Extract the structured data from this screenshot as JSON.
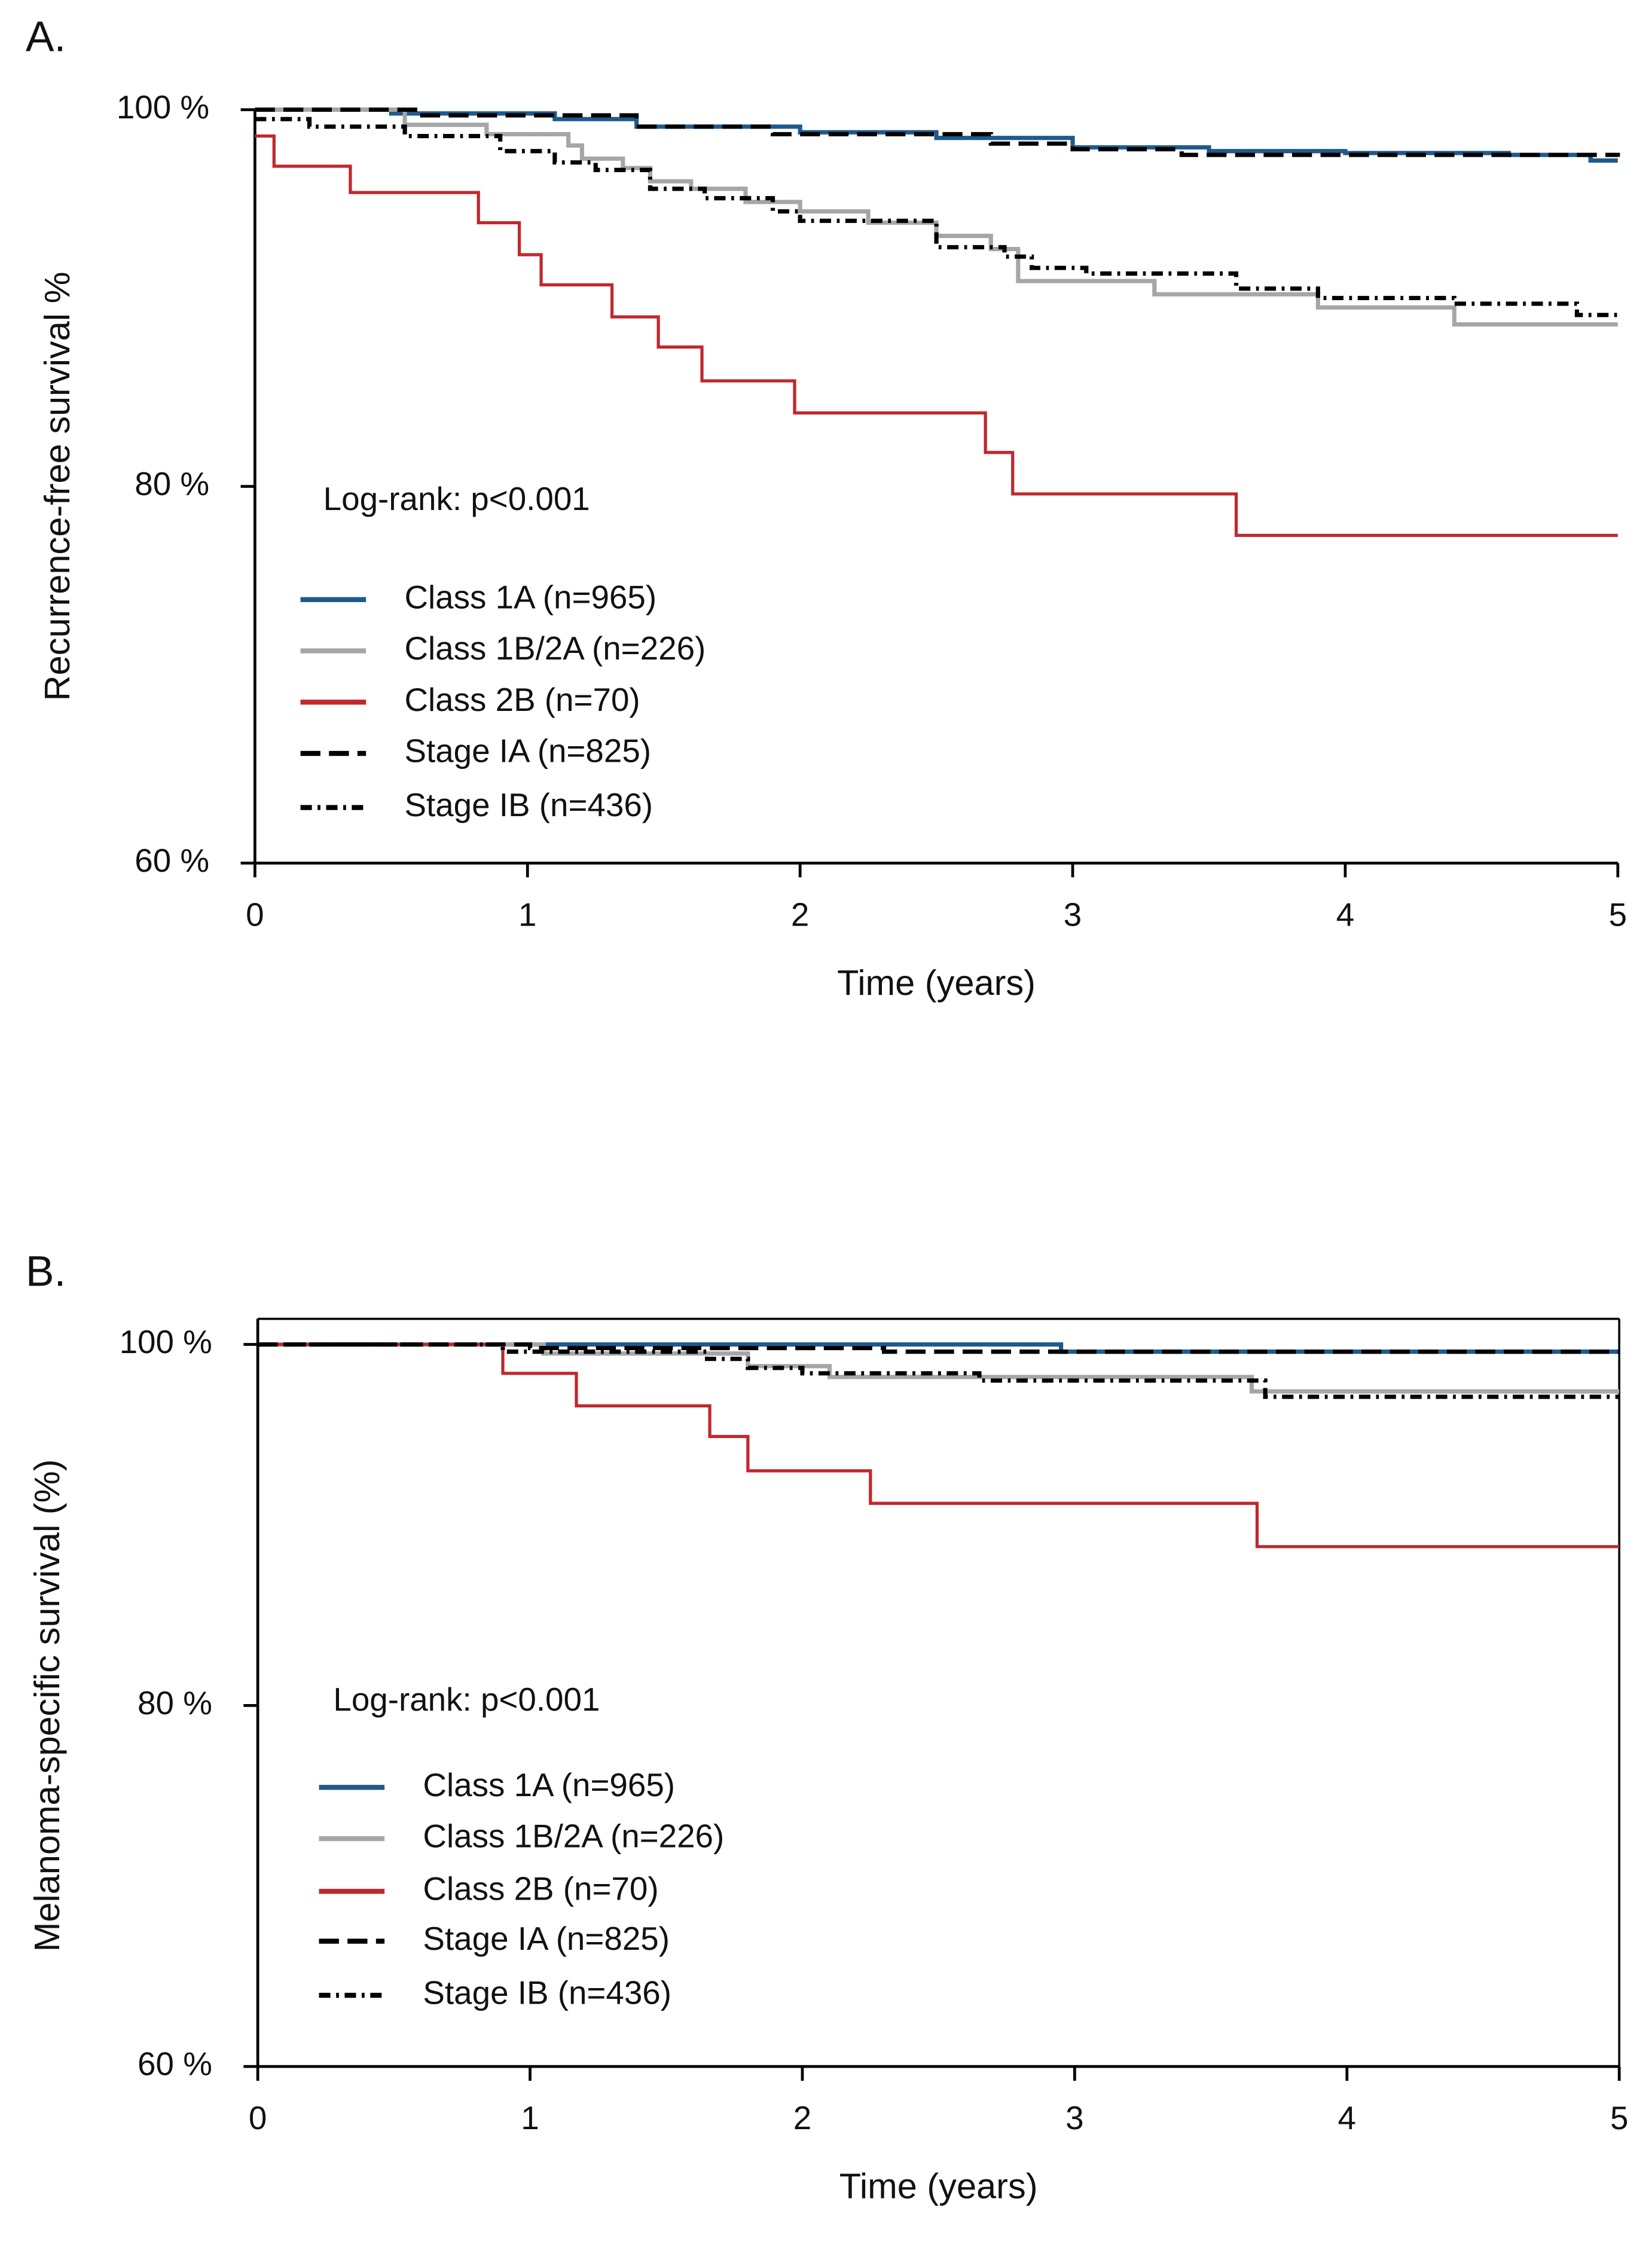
{
  "chart_data": [
    {
      "type": "line",
      "drawstyle": "steps-post",
      "panel_label": "A.",
      "xlabel": "Time (years)",
      "ylabel": "Recurrence-free survival %",
      "annotation": "Log-rank: p<0.001",
      "box": false,
      "xlim": [
        0,
        5
      ],
      "xticks": [
        0,
        1,
        2,
        3,
        4,
        5
      ],
      "ylim": [
        60,
        100
      ],
      "yticks": [
        {
          "value": 60,
          "label": "60 %"
        },
        {
          "value": 80,
          "label": "80 %"
        },
        {
          "value": 100,
          "label": "100 %"
        }
      ],
      "series": [
        {
          "name": "Class 1A (n=965)",
          "color": "#1f5a8c",
          "linestyle": "solid",
          "x": [
            0,
            0.5,
            1.1,
            1.4,
            2.0,
            2.5,
            3.0,
            3.5,
            4.0,
            4.6,
            4.9,
            5
          ],
          "values": [
            100,
            99.8,
            99.5,
            99.1,
            98.8,
            98.5,
            98.0,
            97.8,
            97.7,
            97.6,
            97.3,
            97.3
          ]
        },
        {
          "name": "Class 1B/2A (n=226)",
          "color": "#a6a6a6",
          "linestyle": "solid",
          "x": [
            0,
            0.55,
            0.85,
            1.15,
            1.2,
            1.35,
            1.45,
            1.6,
            1.8,
            2.0,
            2.25,
            2.5,
            2.7,
            2.8,
            3.3,
            3.9,
            4.4,
            5
          ],
          "values": [
            100,
            99.2,
            98.7,
            98.1,
            97.4,
            96.9,
            96.2,
            95.8,
            95.1,
            94.6,
            94.0,
            93.3,
            92.6,
            90.9,
            90.2,
            89.5,
            88.6,
            88.6
          ]
        },
        {
          "name": "Class 2B (n=70)",
          "color": "#c0282d",
          "linestyle": "solid",
          "x": [
            0,
            0.07,
            0.35,
            0.82,
            0.97,
            1.05,
            1.31,
            1.48,
            1.64,
            1.98,
            2.68,
            2.78,
            3.6,
            5
          ],
          "values": [
            98.6,
            97.0,
            95.6,
            94.0,
            92.3,
            90.7,
            89.0,
            87.4,
            85.6,
            83.9,
            81.8,
            79.6,
            77.4,
            77.4
          ]
        },
        {
          "name": "Stage IA (n=825)",
          "color": "#000000",
          "linestyle": "dashed",
          "x": [
            0,
            0.6,
            1.4,
            1.9,
            2.7,
            3.0,
            3.4,
            5
          ],
          "values": [
            100,
            99.7,
            99.1,
            98.7,
            98.2,
            97.9,
            97.6,
            97.5
          ]
        },
        {
          "name": "Stage IB (n=436)",
          "color": "#000000",
          "linestyle": "dashdot",
          "x": [
            0,
            0.2,
            0.55,
            0.9,
            1.1,
            1.25,
            1.45,
            1.65,
            1.9,
            2.0,
            2.5,
            2.75,
            2.85,
            3.05,
            3.6,
            3.9,
            4.4,
            4.85,
            5
          ],
          "values": [
            99.5,
            99.1,
            98.6,
            97.8,
            97.2,
            96.8,
            95.8,
            95.3,
            94.6,
            94.1,
            92.7,
            92.2,
            91.6,
            91.3,
            90.5,
            90.0,
            89.7,
            89.1,
            89.1
          ]
        }
      ]
    },
    {
      "type": "line",
      "drawstyle": "steps-post",
      "panel_label": "B.",
      "xlabel": "Time (years)",
      "ylabel": "Melanoma-specific survival (%)",
      "annotation": "Log-rank: p<0.001",
      "box": true,
      "xlim": [
        0,
        5
      ],
      "xticks": [
        0,
        1,
        2,
        3,
        4,
        5
      ],
      "ylim": [
        60,
        100
      ],
      "yticks": [
        {
          "value": 60,
          "label": "60 %"
        },
        {
          "value": 80,
          "label": "80 %"
        },
        {
          "value": 100,
          "label": "100 %"
        }
      ],
      "series": [
        {
          "name": "Class 1A (n=965)",
          "color": "#1f5a8c",
          "linestyle": "solid",
          "x": [
            0,
            2.95,
            5
          ],
          "values": [
            100,
            99.6,
            99.6
          ]
        },
        {
          "name": "Class 1B/2A (n=226)",
          "color": "#a6a6a6",
          "linestyle": "solid",
          "x": [
            0,
            1.05,
            1.8,
            2.1,
            3.65,
            5
          ],
          "values": [
            100,
            99.5,
            98.8,
            98.2,
            97.4,
            97.4
          ]
        },
        {
          "name": "Class 2B (n=70)",
          "color": "#c0282d",
          "linestyle": "solid",
          "x": [
            0,
            0.9,
            1.17,
            1.66,
            1.8,
            2.25,
            3.67,
            5
          ],
          "values": [
            100,
            98.4,
            96.6,
            94.9,
            93.0,
            91.2,
            88.8,
            88.8
          ]
        },
        {
          "name": "Stage IA (n=825)",
          "color": "#000000",
          "linestyle": "dashed",
          "x": [
            0,
            1.0,
            2.3,
            5
          ],
          "values": [
            100,
            99.8,
            99.6,
            99.6
          ]
        },
        {
          "name": "Stage IB (n=436)",
          "color": "#000000",
          "linestyle": "dashdot",
          "x": [
            0,
            0.9,
            1.65,
            1.8,
            2.0,
            2.65,
            3.7,
            5
          ],
          "values": [
            100,
            99.6,
            99.2,
            98.7,
            98.4,
            98.0,
            97.1,
            97.1
          ]
        }
      ]
    }
  ]
}
